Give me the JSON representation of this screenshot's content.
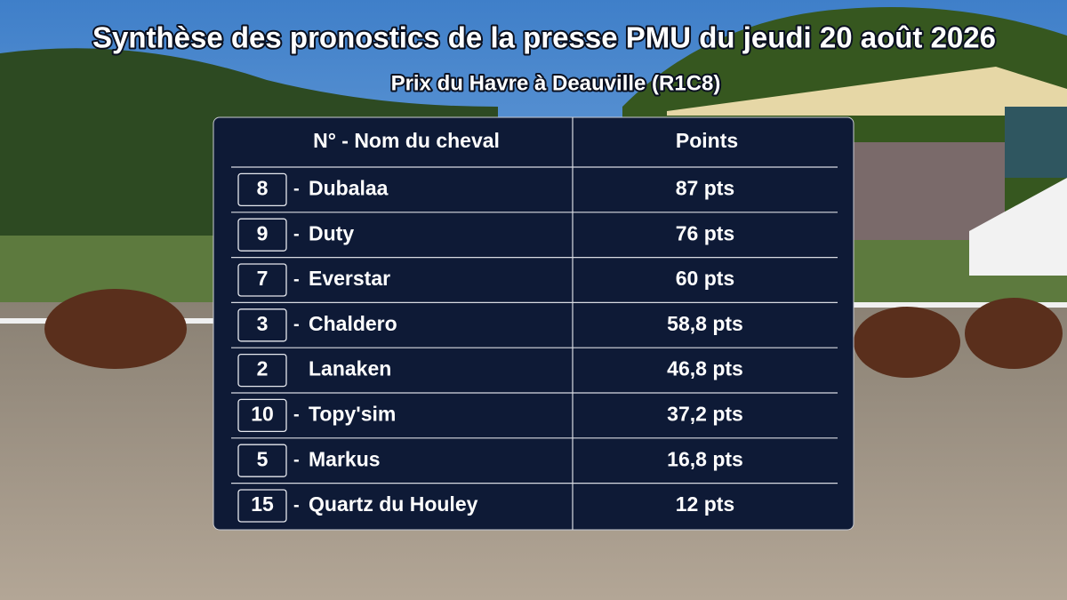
{
  "header": {
    "title": "Synthèse des pronostics de la presse PMU du jeudi 20 août 2026",
    "subtitle": "Prix du Havre à Deauville (R1C8)"
  },
  "table": {
    "columns": [
      "N° - Nom du cheval",
      "Points"
    ],
    "rows": [
      {
        "number": "8",
        "dash": "-",
        "name": "Dubalaa",
        "points": "87 pts"
      },
      {
        "number": "9",
        "dash": "-",
        "name": "Duty",
        "points": "76 pts"
      },
      {
        "number": "7",
        "dash": "-",
        "name": "Everstar",
        "points": "60 pts"
      },
      {
        "number": "3",
        "dash": "-",
        "name": "Chaldero",
        "points": "58,8 pts"
      },
      {
        "number": "2",
        "name": "Lanaken",
        "points": "46,8 pts"
      },
      {
        "number": "10",
        "dash": "-",
        "name": "Topy'sim",
        "points": "37,2 pts"
      },
      {
        "number": "5",
        "dash": "-",
        "name": "Markus",
        "points": "16,8 pts"
      },
      {
        "number": "15",
        "dash": "-",
        "name": "Quartz du Houley",
        "points": "12 pts"
      }
    ]
  }
}
